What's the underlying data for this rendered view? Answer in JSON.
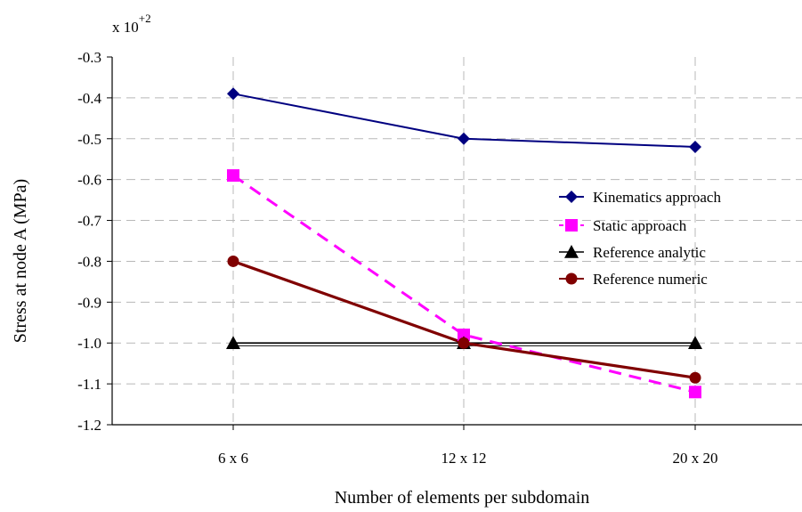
{
  "chart_data": {
    "type": "line",
    "scale_note": {
      "prefix": "x 10",
      "exponent": "+2"
    },
    "xlabel": "Number of elements per subdomain",
    "ylabel": "Stress at node A (MPa)",
    "categories": [
      "6 x 6",
      "12 x 12",
      "20 x 20"
    ],
    "ylim": [
      -1.2,
      -0.3
    ],
    "yticks": [
      -0.3,
      -0.4,
      -0.5,
      -0.6,
      -0.7,
      -0.8,
      -0.9,
      -1.0,
      -1.1,
      -1.2
    ],
    "ytick_labels": [
      "-0.3",
      "-0.4",
      "-0.5",
      "-0.6",
      "-0.7",
      "-0.8",
      "-0.9",
      "-1.0",
      "-1.1",
      "-1.2"
    ],
    "grid": true,
    "legend_position": "right",
    "series": [
      {
        "name": "Kinematics approach",
        "values": [
          -0.39,
          -0.5,
          -0.52
        ],
        "color": "#000080",
        "marker": "diamond",
        "line": "solid"
      },
      {
        "name": "Static approach",
        "values": [
          -0.59,
          -0.98,
          -1.12
        ],
        "color": "#ff00ff",
        "marker": "square",
        "line": "dashed"
      },
      {
        "name": "Reference analytic",
        "values": [
          -1.0,
          -1.0,
          -1.0
        ],
        "color": "#000000",
        "marker": "triangle",
        "line": "solid"
      },
      {
        "name": "Reference numeric",
        "values": [
          -0.8,
          -1.0,
          -1.085
        ],
        "color": "#800000",
        "marker": "circle",
        "line": "solid"
      }
    ]
  }
}
